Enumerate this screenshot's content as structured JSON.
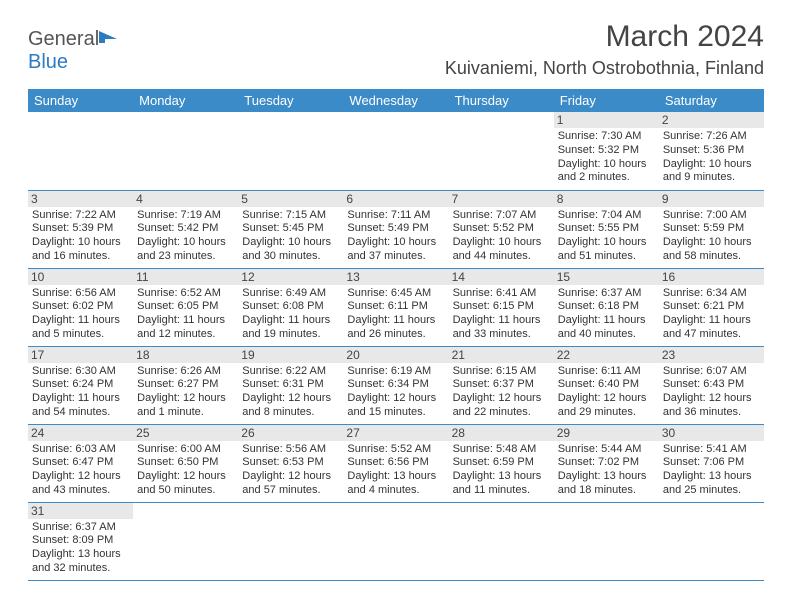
{
  "logo": {
    "text1": "General",
    "text2": "Blue"
  },
  "title": "March 2024",
  "location": "Kuivaniemi, North Ostrobothnia, Finland",
  "header_bg": "#3b8bc8",
  "days": [
    "Sunday",
    "Monday",
    "Tuesday",
    "Wednesday",
    "Thursday",
    "Friday",
    "Saturday"
  ],
  "weeks": [
    [
      null,
      null,
      null,
      null,
      null,
      {
        "n": "1",
        "sr": "Sunrise: 7:30 AM",
        "ss": "Sunset: 5:32 PM",
        "d1": "Daylight: 10 hours",
        "d2": "and 2 minutes."
      },
      {
        "n": "2",
        "sr": "Sunrise: 7:26 AM",
        "ss": "Sunset: 5:36 PM",
        "d1": "Daylight: 10 hours",
        "d2": "and 9 minutes."
      }
    ],
    [
      {
        "n": "3",
        "sr": "Sunrise: 7:22 AM",
        "ss": "Sunset: 5:39 PM",
        "d1": "Daylight: 10 hours",
        "d2": "and 16 minutes."
      },
      {
        "n": "4",
        "sr": "Sunrise: 7:19 AM",
        "ss": "Sunset: 5:42 PM",
        "d1": "Daylight: 10 hours",
        "d2": "and 23 minutes."
      },
      {
        "n": "5",
        "sr": "Sunrise: 7:15 AM",
        "ss": "Sunset: 5:45 PM",
        "d1": "Daylight: 10 hours",
        "d2": "and 30 minutes."
      },
      {
        "n": "6",
        "sr": "Sunrise: 7:11 AM",
        "ss": "Sunset: 5:49 PM",
        "d1": "Daylight: 10 hours",
        "d2": "and 37 minutes."
      },
      {
        "n": "7",
        "sr": "Sunrise: 7:07 AM",
        "ss": "Sunset: 5:52 PM",
        "d1": "Daylight: 10 hours",
        "d2": "and 44 minutes."
      },
      {
        "n": "8",
        "sr": "Sunrise: 7:04 AM",
        "ss": "Sunset: 5:55 PM",
        "d1": "Daylight: 10 hours",
        "d2": "and 51 minutes."
      },
      {
        "n": "9",
        "sr": "Sunrise: 7:00 AM",
        "ss": "Sunset: 5:59 PM",
        "d1": "Daylight: 10 hours",
        "d2": "and 58 minutes."
      }
    ],
    [
      {
        "n": "10",
        "sr": "Sunrise: 6:56 AM",
        "ss": "Sunset: 6:02 PM",
        "d1": "Daylight: 11 hours",
        "d2": "and 5 minutes."
      },
      {
        "n": "11",
        "sr": "Sunrise: 6:52 AM",
        "ss": "Sunset: 6:05 PM",
        "d1": "Daylight: 11 hours",
        "d2": "and 12 minutes."
      },
      {
        "n": "12",
        "sr": "Sunrise: 6:49 AM",
        "ss": "Sunset: 6:08 PM",
        "d1": "Daylight: 11 hours",
        "d2": "and 19 minutes."
      },
      {
        "n": "13",
        "sr": "Sunrise: 6:45 AM",
        "ss": "Sunset: 6:11 PM",
        "d1": "Daylight: 11 hours",
        "d2": "and 26 minutes."
      },
      {
        "n": "14",
        "sr": "Sunrise: 6:41 AM",
        "ss": "Sunset: 6:15 PM",
        "d1": "Daylight: 11 hours",
        "d2": "and 33 minutes."
      },
      {
        "n": "15",
        "sr": "Sunrise: 6:37 AM",
        "ss": "Sunset: 6:18 PM",
        "d1": "Daylight: 11 hours",
        "d2": "and 40 minutes."
      },
      {
        "n": "16",
        "sr": "Sunrise: 6:34 AM",
        "ss": "Sunset: 6:21 PM",
        "d1": "Daylight: 11 hours",
        "d2": "and 47 minutes."
      }
    ],
    [
      {
        "n": "17",
        "sr": "Sunrise: 6:30 AM",
        "ss": "Sunset: 6:24 PM",
        "d1": "Daylight: 11 hours",
        "d2": "and 54 minutes."
      },
      {
        "n": "18",
        "sr": "Sunrise: 6:26 AM",
        "ss": "Sunset: 6:27 PM",
        "d1": "Daylight: 12 hours",
        "d2": "and 1 minute."
      },
      {
        "n": "19",
        "sr": "Sunrise: 6:22 AM",
        "ss": "Sunset: 6:31 PM",
        "d1": "Daylight: 12 hours",
        "d2": "and 8 minutes."
      },
      {
        "n": "20",
        "sr": "Sunrise: 6:19 AM",
        "ss": "Sunset: 6:34 PM",
        "d1": "Daylight: 12 hours",
        "d2": "and 15 minutes."
      },
      {
        "n": "21",
        "sr": "Sunrise: 6:15 AM",
        "ss": "Sunset: 6:37 PM",
        "d1": "Daylight: 12 hours",
        "d2": "and 22 minutes."
      },
      {
        "n": "22",
        "sr": "Sunrise: 6:11 AM",
        "ss": "Sunset: 6:40 PM",
        "d1": "Daylight: 12 hours",
        "d2": "and 29 minutes."
      },
      {
        "n": "23",
        "sr": "Sunrise: 6:07 AM",
        "ss": "Sunset: 6:43 PM",
        "d1": "Daylight: 12 hours",
        "d2": "and 36 minutes."
      }
    ],
    [
      {
        "n": "24",
        "sr": "Sunrise: 6:03 AM",
        "ss": "Sunset: 6:47 PM",
        "d1": "Daylight: 12 hours",
        "d2": "and 43 minutes."
      },
      {
        "n": "25",
        "sr": "Sunrise: 6:00 AM",
        "ss": "Sunset: 6:50 PM",
        "d1": "Daylight: 12 hours",
        "d2": "and 50 minutes."
      },
      {
        "n": "26",
        "sr": "Sunrise: 5:56 AM",
        "ss": "Sunset: 6:53 PM",
        "d1": "Daylight: 12 hours",
        "d2": "and 57 minutes."
      },
      {
        "n": "27",
        "sr": "Sunrise: 5:52 AM",
        "ss": "Sunset: 6:56 PM",
        "d1": "Daylight: 13 hours",
        "d2": "and 4 minutes."
      },
      {
        "n": "28",
        "sr": "Sunrise: 5:48 AM",
        "ss": "Sunset: 6:59 PM",
        "d1": "Daylight: 13 hours",
        "d2": "and 11 minutes."
      },
      {
        "n": "29",
        "sr": "Sunrise: 5:44 AM",
        "ss": "Sunset: 7:02 PM",
        "d1": "Daylight: 13 hours",
        "d2": "and 18 minutes."
      },
      {
        "n": "30",
        "sr": "Sunrise: 5:41 AM",
        "ss": "Sunset: 7:06 PM",
        "d1": "Daylight: 13 hours",
        "d2": "and 25 minutes."
      }
    ],
    [
      {
        "n": "31",
        "sr": "Sunrise: 6:37 AM",
        "ss": "Sunset: 8:09 PM",
        "d1": "Daylight: 13 hours",
        "d2": "and 32 minutes."
      },
      null,
      null,
      null,
      null,
      null,
      null
    ]
  ]
}
